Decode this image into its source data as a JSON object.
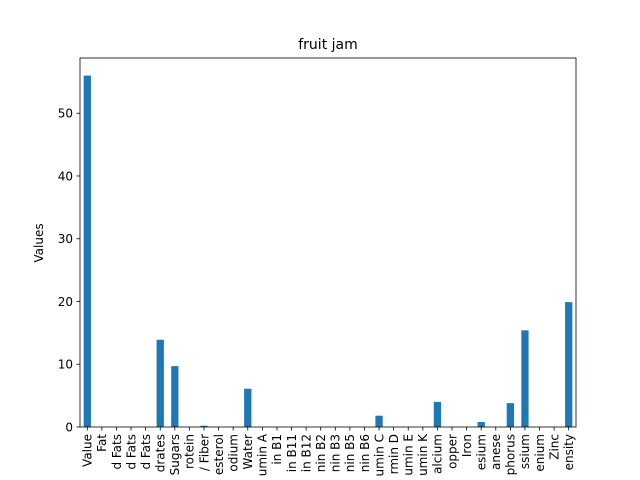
{
  "chart_data": {
    "type": "bar",
    "title": "fruit jam",
    "xlabel": "",
    "ylabel": "Values",
    "ylim": [
      0,
      58.8
    ],
    "yticks": [
      0,
      10,
      20,
      30,
      40,
      50
    ],
    "grid": false,
    "legend": "none",
    "bar_color": "#1f77b4",
    "tick_label_rotation": 90,
    "categories": [
      "Value",
      "Fat",
      "d Fats",
      "d Fats",
      "d Fats",
      "drates",
      "Sugars",
      "rotein",
      "/ Fiber",
      "esterol",
      "odium",
      "Water",
      "umin A",
      "in B1",
      "in B11",
      "in B12",
      "nin B2",
      "nin B3",
      "nin B5",
      "nin B6",
      "umin C",
      "rmin D",
      "umin E",
      "umin K",
      "alcium",
      "opper",
      "Iron",
      "esium",
      "anese",
      "phorus",
      "ssium",
      "enium",
      "Zinc",
      "ensity"
    ],
    "values": [
      56.0,
      0,
      0,
      0,
      0,
      13.9,
      9.7,
      0,
      0.2,
      0,
      0,
      6.1,
      0,
      0,
      0,
      0,
      0,
      0,
      0,
      0,
      1.8,
      0,
      0,
      0,
      4.0,
      0,
      0,
      0.8,
      0,
      3.8,
      15.4,
      0,
      0,
      19.9
    ]
  }
}
